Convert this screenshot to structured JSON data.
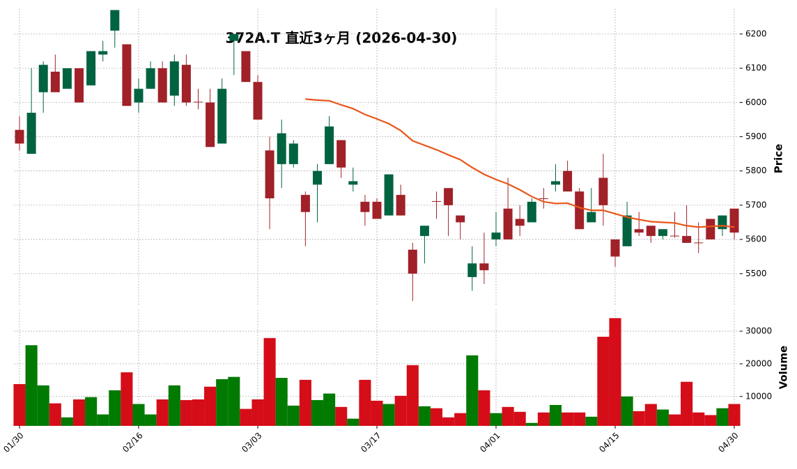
{
  "chart_data": [
    {
      "type": "candlestick",
      "title": "372A.T  直近3ヶ月  (2026-04-30)",
      "y_label": "Price",
      "open": [
        5920,
        5850,
        6030,
        6090,
        6040,
        6100,
        6050,
        6140,
        6210,
        6170,
        6000,
        6040,
        6100,
        6020,
        6110,
        6002,
        6000,
        5880,
        6180,
        6150,
        6060,
        5860,
        5820,
        5820,
        5730,
        5760,
        5820,
        5890,
        5760,
        5710,
        5710,
        5670,
        5730,
        5570,
        5610,
        5712,
        5750,
        5670,
        5490,
        5530,
        5600,
        5690,
        5660,
        5650,
        5720,
        5760,
        5800,
        5740,
        5650,
        5780,
        5600,
        5580,
        5630,
        5640,
        5610,
        5611,
        5610,
        5591,
        5660,
        5630,
        5690
      ],
      "high": [
        5960,
        6100,
        6120,
        6140,
        6100,
        6100,
        6150,
        6180,
        6270,
        6170,
        6070,
        6120,
        6120,
        6140,
        6140,
        6040,
        6040,
        6070,
        6200,
        6150,
        6080,
        5900,
        5950,
        5890,
        5740,
        5820,
        5960,
        5890,
        5810,
        5730,
        5720,
        5790,
        5760,
        5590,
        5640,
        5740,
        5750,
        5670,
        5580,
        5620,
        5680,
        5780,
        5700,
        5720,
        5750,
        5820,
        5830,
        5750,
        5750,
        5850,
        5600,
        5710,
        5680,
        5640,
        5630,
        5680,
        5700,
        5650,
        5660,
        5670,
        5690
      ],
      "low": [
        5860,
        5850,
        5970,
        6030,
        6040,
        6000,
        6050,
        6120,
        6160,
        5990,
        5970,
        6040,
        6000,
        5990,
        5990,
        5980,
        5870,
        5880,
        6080,
        6060,
        5950,
        5630,
        5750,
        5810,
        5580,
        5650,
        5820,
        5780,
        5740,
        5640,
        5660,
        5670,
        5670,
        5420,
        5530,
        5660,
        5610,
        5600,
        5450,
        5470,
        5580,
        5600,
        5610,
        5650,
        5690,
        5740,
        5740,
        5630,
        5650,
        5640,
        5520,
        5580,
        5610,
        5590,
        5600,
        5605,
        5590,
        5560,
        5600,
        5610,
        5600
      ],
      "close": [
        5880,
        5970,
        6110,
        6030,
        6100,
        6000,
        6150,
        6150,
        6270,
        5990,
        6040,
        6100,
        6000,
        6120,
        6000,
        6000,
        5870,
        6040,
        6200,
        6060,
        5950,
        5720,
        5910,
        5880,
        5680,
        5800,
        5930,
        5810,
        5770,
        5680,
        5660,
        5790,
        5670,
        5500,
        5640,
        5710,
        5700,
        5650,
        5530,
        5510,
        5620,
        5600,
        5640,
        5710,
        5718,
        5770,
        5740,
        5630,
        5680,
        5700,
        5550,
        5670,
        5620,
        5610,
        5630,
        5609,
        5590,
        5590,
        5600,
        5670,
        5620
      ],
      "up_color": "#006340",
      "down_color": "#a02128",
      "lines": [
        {
          "color": "#e8561a",
          "values": [
            null,
            null,
            null,
            null,
            null,
            null,
            null,
            null,
            null,
            null,
            null,
            null,
            null,
            null,
            null,
            null,
            null,
            null,
            null,
            null,
            null,
            null,
            null,
            null,
            6010,
            6007,
            6005,
            5993,
            5982,
            5965,
            5952,
            5938,
            5918,
            5888,
            5875,
            5862,
            5847,
            5833,
            5810,
            5790,
            5775,
            5762,
            5745,
            5725,
            5710,
            5705,
            5706,
            5693,
            5685,
            5685,
            5675,
            5665,
            5658,
            5652,
            5650,
            5648,
            5640,
            5636,
            5638,
            5640,
            5636
          ]
        }
      ],
      "ylim": [
        5405,
        6275
      ],
      "yticks": [
        5500,
        5600,
        5700,
        5800,
        5900,
        6000,
        6100,
        6200
      ],
      "grid": true
    },
    {
      "type": "bar",
      "y_label": "Volume",
      "categories": [
        "01/30",
        null,
        null,
        null,
        null,
        null,
        null,
        null,
        null,
        null,
        "02/16",
        null,
        null,
        null,
        null,
        null,
        null,
        null,
        null,
        null,
        "03/03",
        null,
        null,
        null,
        null,
        null,
        null,
        null,
        null,
        null,
        "03/17",
        null,
        null,
        null,
        null,
        null,
        null,
        null,
        null,
        null,
        "04/01",
        null,
        null,
        null,
        null,
        null,
        null,
        null,
        null,
        null,
        "04/15",
        null,
        null,
        null,
        null,
        null,
        null,
        null,
        null,
        null,
        "04/30"
      ],
      "values": [
        13800,
        25700,
        13400,
        7900,
        3600,
        9100,
        9800,
        4500,
        11900,
        17400,
        7700,
        4500,
        9100,
        13400,
        8900,
        9100,
        13000,
        15300,
        16000,
        6200,
        9100,
        27900,
        15700,
        7200,
        15100,
        8900,
        10900,
        6800,
        3200,
        15100,
        8700,
        7700,
        10200,
        19600,
        7000,
        6400,
        3600,
        4900,
        22600,
        11900,
        4900,
        6800,
        5300,
        1900,
        5100,
        7400,
        5100,
        5100,
        3800,
        28300,
        34000,
        10000,
        5500,
        7700,
        6000,
        4500,
        14500,
        5100,
        4300,
        6400,
        7700
      ],
      "up_color": "#007a00",
      "down_color": "#d50d18",
      "ylim": [
        1000,
        36600
      ],
      "yticks": [
        10000,
        20000,
        30000
      ],
      "grid": true
    }
  ]
}
